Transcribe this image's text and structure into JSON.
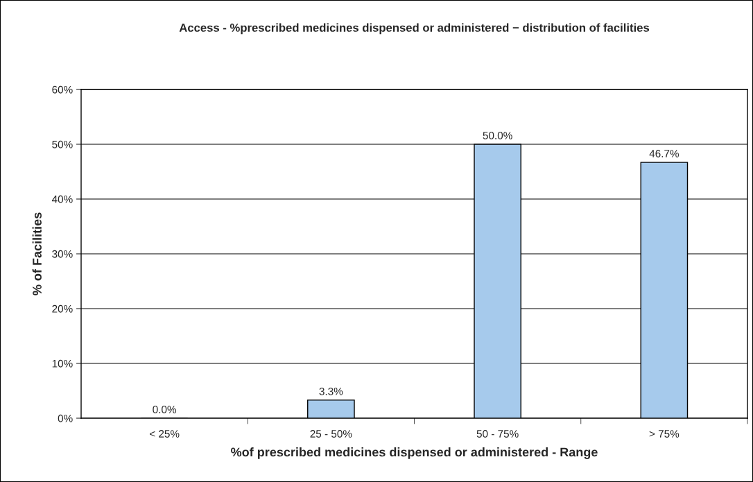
{
  "chart_data": {
    "type": "bar",
    "title": "Access - %prescribed medicines dispensed or administered − distribution of facilities",
    "xlabel": "%of prescribed medicines dispensed or administered - Range",
    "ylabel": "% of Facilities",
    "categories": [
      "< 25%",
      "25 - 50%",
      "50 - 75%",
      "> 75%"
    ],
    "values": [
      0,
      3.3,
      50,
      46.7
    ],
    "value_labels": [
      "0.0%",
      "3.3%",
      "50.0%",
      "46.7%"
    ],
    "color": "#a6caec",
    "ylim": [
      0,
      60
    ],
    "yticks": [
      {
        "value": 0,
        "label": "0%"
      },
      {
        "value": 10,
        "label": "10%"
      },
      {
        "value": 20,
        "label": "20%"
      },
      {
        "value": 30,
        "label": "30%"
      },
      {
        "value": 40,
        "label": "40%"
      },
      {
        "value": 50,
        "label": "50%"
      },
      {
        "value": 60,
        "label": "60%"
      }
    ],
    "grid": "y",
    "legend": false
  }
}
